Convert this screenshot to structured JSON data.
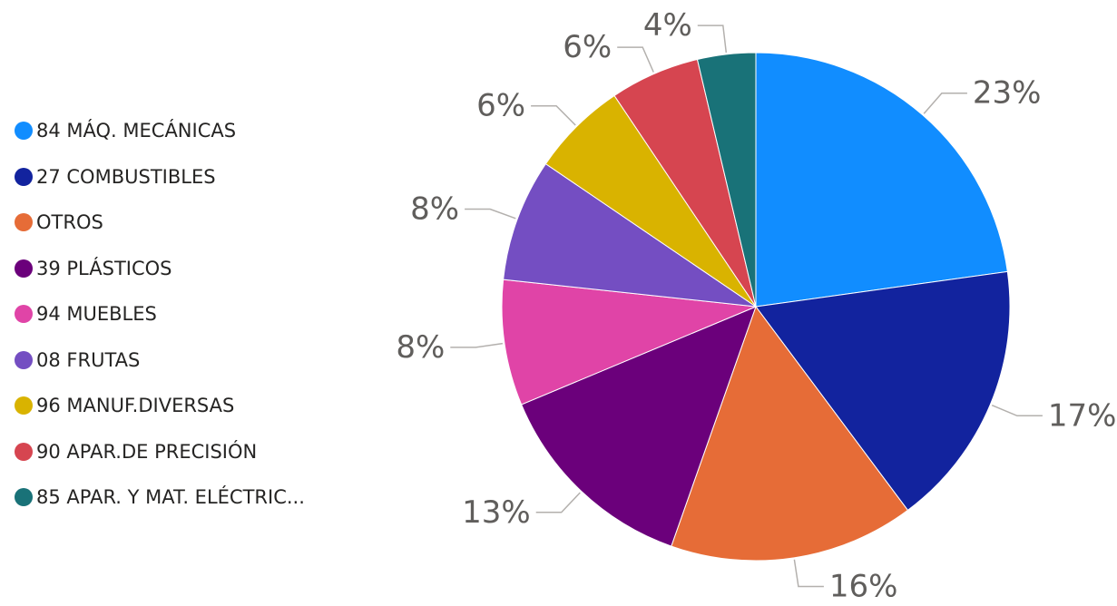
{
  "chart_data": {
    "type": "pie",
    "title": "",
    "legend_position": "left",
    "slices": [
      {
        "name": "84 MÁQ. MECÁNICAS",
        "value": 22.8,
        "label": "23%",
        "color": "#118DFF"
      },
      {
        "name": "27 COMBUSTIBLES",
        "value": 17.0,
        "label": "17%",
        "color": "#12239E"
      },
      {
        "name": "OTROS",
        "value": 15.6,
        "label": "16%",
        "color": "#E66C37"
      },
      {
        "name": "39 PLÁSTICOS",
        "value": 13.3,
        "label": "13%",
        "color": "#6B007B"
      },
      {
        "name": "94 MUEBLES",
        "value": 8.0,
        "label": "8%",
        "color": "#E044A7"
      },
      {
        "name": "08 FRUTAS",
        "value": 7.8,
        "label": "8%",
        "color": "#744EC2"
      },
      {
        "name": "96 MANUF.DIVERSAS",
        "value": 6.1,
        "label": "6%",
        "color": "#D9B300"
      },
      {
        "name": "90 APAR.DE PRECISIÓN",
        "value": 5.7,
        "label": "6%",
        "color": "#D64550"
      },
      {
        "name": "85 APAR. Y MAT. ELÉCTRIC...",
        "value": 3.7,
        "label": "4%",
        "color": "#197278"
      }
    ]
  }
}
